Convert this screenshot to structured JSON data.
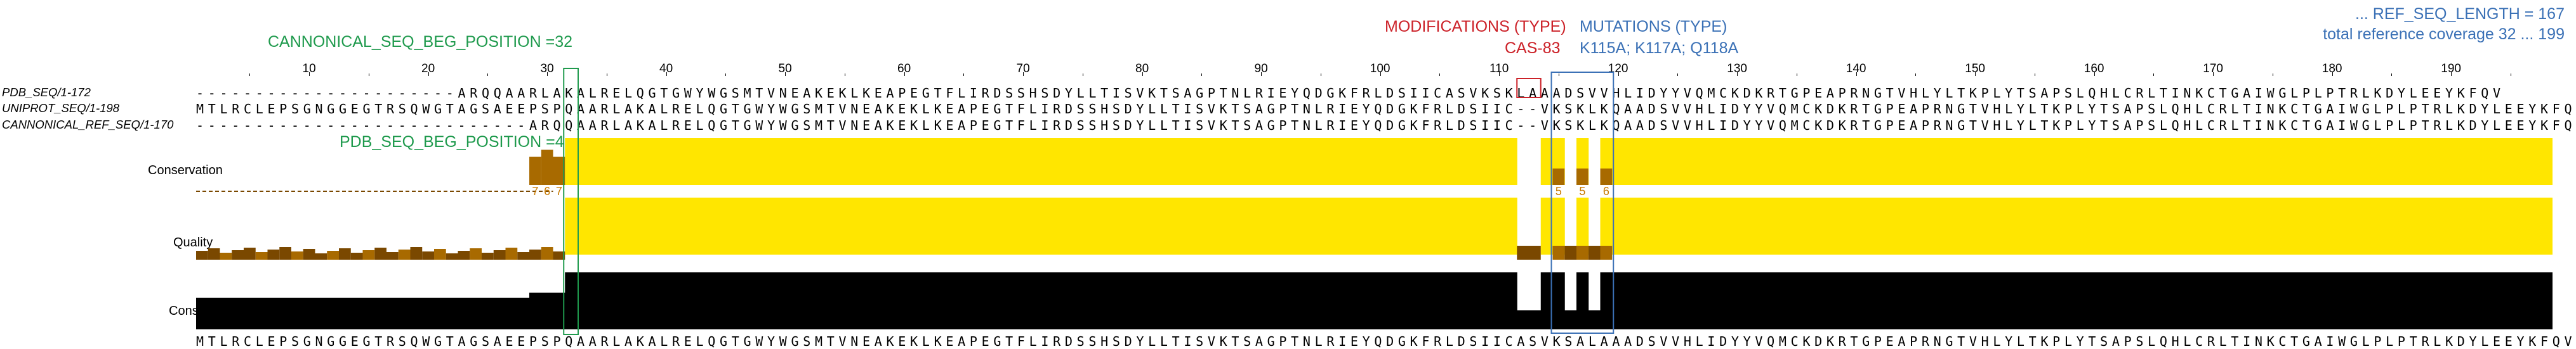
{
  "annotations": {
    "cannonical_seq_beg": "CANNONICAL_SEQ_BEG_POSITION =32",
    "pdb_seq_beg": "PDB_SEQ_BEG_POSITION =4",
    "modifications_title": "MODIFICATIONS (TYPE)",
    "modifications_value": "CAS-83",
    "mutations_title": "MUTATIONS (TYPE)",
    "mutations_value": "K115A; K117A; Q118A",
    "ref_seq_length": "... REF_SEQ_LENGTH = 167",
    "total_coverage": "total reference coverage 32 ... 199"
  },
  "colors": {
    "green": "#1f9a4d",
    "red": "#cc2229",
    "blue": "#3b71b6",
    "yellow": "#ffe600",
    "brown_dark": "#7a4800",
    "brown_mid": "#a86a00",
    "orange_text": "#c87a00",
    "black": "#000000"
  },
  "ruler": {
    "labels": [
      "10",
      "20",
      "30",
      "40",
      "50",
      "60",
      "70",
      "80",
      "90",
      "100",
      "110",
      "120",
      "130",
      "140",
      "150",
      "160",
      "170",
      "180",
      "190"
    ],
    "positions": [
      10,
      20,
      30,
      40,
      50,
      60,
      70,
      80,
      90,
      100,
      110,
      120,
      130,
      140,
      150,
      160,
      170,
      180,
      190
    ]
  },
  "sequences": [
    {
      "name": "PDB_SEQ/1-172",
      "residues": "----------------------ARQQAARLAKALRELQGTGWYWGSMTVNEAKEKLKEAPEGTFLIRDSSHSDYLLTISVKTSAGPTNLRIEYQDGKFRLDSIICASVKSKLAAADSVVHLIDYYVQMCKDKRTGPEAPRNGTVHLYLTKPLYTSAPSLQHLCRLTINKCTGAIWGLPLPTRLKDYLEEYKFQV"
    },
    {
      "name": "UNIPROT_SEQ/1-198",
      "residues": "MTLRCLEPSGNGGEGTRSQWGTAGSAEEPSPQAARLAKALRELQGTGWYWGSMTVNEAKEKLKEAPEGTFLIRDSSHSDYLLTISVKTSAGPTNLRIEYQDGKFRLDSIIC--VKSKLKQAADSVVHLIDYYVQMCKDKRTGPEAPRNGTVHLYLTKPLYTSAPSLQHLCRLTINKCTGAIWGLPLPTRLKDYLEEYKFQV"
    },
    {
      "name": "CANNONICAL_REF_SEQ/1-170",
      "residues": "----------------------------ARQQAARLAKALRELQGTGWYWGSMTVNEAKEKLKEAPEGTFLIRDSSHSDYLLTISVKTSAGPTNLRIEYQDGKFRLDSIIC--VKSKLKQAADSVVHLIDYYVQMCKDKRTGPEAPRNGTVHLYLTKPLYTSAPSLQHLCRLTINKCTGAIWGLPLPTRLKDYLEEYKFQV"
    }
  ],
  "tracks": {
    "conservation_label": "Conservation",
    "quality_label": "Quality",
    "consensus_label": "Consensus",
    "conservation_numbers": [
      "7",
      "6",
      "7",
      "5",
      "5",
      "6"
    ],
    "consensus_sequence": "MTLRCLEPSGNGGEGTRSQWGTAGSAEEPSPQAARLAKALRELQGTGWYWGSMTVNEAKEKLKEAPEGTFLIRDSSHSDYLLTISVKTSAGPTNLRIEYQDGKFRLDSIICASVKSALAAADSVVHLIDYYVQMCKDKRTGPEAPRNGTVHLYLTKPLYTSAPSLQHLCRLTINKCTGAIWGLPLPTRLKDYLEEYKFQV"
  }
}
